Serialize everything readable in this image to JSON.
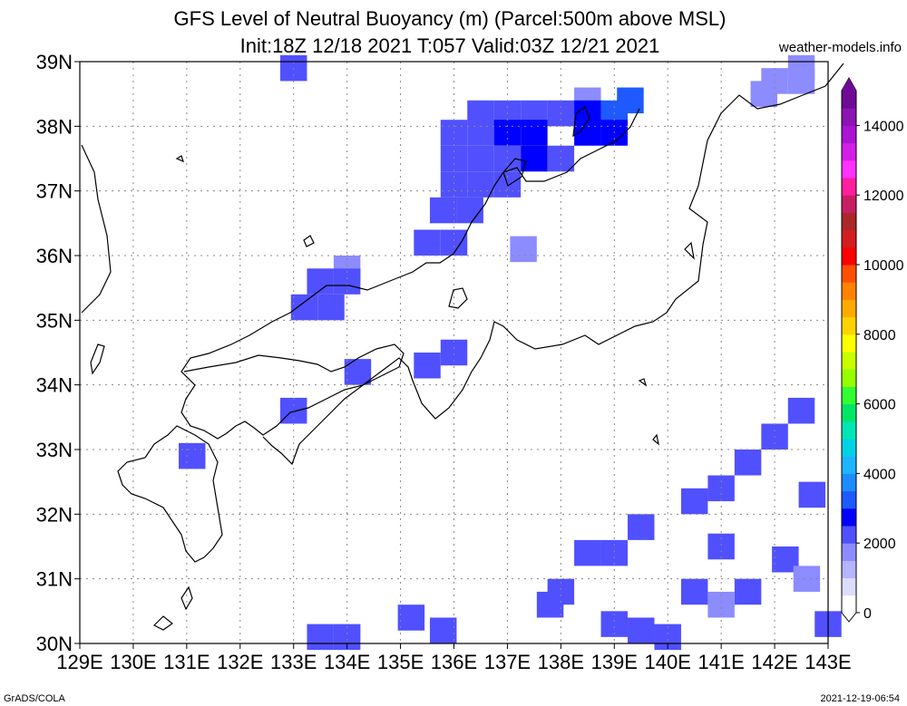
{
  "title_line1": "GFS Level of Neutral Buoyancy (m) (Parcel:500m above MSL)",
  "title_line2": "Init:18Z 12/18 2021 T:057 Valid:03Z 12/21 2021",
  "credit": "weather-models.info",
  "footer_left": "GrADS/COLA",
  "footer_right": "2021-12-19-06:54",
  "lon_labels": [
    "129E",
    "130E",
    "131E",
    "132E",
    "133E",
    "134E",
    "135E",
    "136E",
    "137E",
    "138E",
    "139E",
    "140E",
    "141E",
    "142E",
    "143E"
  ],
  "lat_labels": [
    "30N",
    "31N",
    "32N",
    "33N",
    "34N",
    "35N",
    "36N",
    "37N",
    "38N",
    "39N"
  ],
  "colorbar": {
    "labels": [
      "0",
      "2000",
      "4000",
      "6000",
      "8000",
      "10000",
      "12000",
      "14000"
    ],
    "colors": [
      "#ffffff",
      "#dcdcff",
      "#b4b4ff",
      "#8c8cff",
      "#5050ff",
      "#0000ff",
      "#1e5aff",
      "#1e8cff",
      "#1eb4ff",
      "#00d2e6",
      "#00e6b4",
      "#00e664",
      "#32ff32",
      "#96ff00",
      "#c8ff00",
      "#ffff00",
      "#ffd200",
      "#ffaa00",
      "#ff8200",
      "#ff5000",
      "#ff0000",
      "#d21e1e",
      "#aa2828",
      "#c81e64",
      "#ff1ea0",
      "#ff32ff",
      "#d21ee6",
      "#aa14d2",
      "#8c14b4",
      "#6e0a96"
    ]
  },
  "chart_data": {
    "type": "heatmap",
    "units": "m",
    "lon_range": [
      129,
      143
    ],
    "lat_range": [
      30,
      39
    ],
    "cells": [
      {
        "lon": 133.0,
        "lat": 38.9,
        "v": 2000
      },
      {
        "lon": 142.5,
        "lat": 38.9,
        "v": 1800
      },
      {
        "lon": 142.0,
        "lat": 38.7,
        "v": 1800
      },
      {
        "lon": 142.5,
        "lat": 38.7,
        "v": 1500
      },
      {
        "lon": 141.8,
        "lat": 38.5,
        "v": 1800
      },
      {
        "lon": 138.5,
        "lat": 38.4,
        "v": 1500
      },
      {
        "lon": 139.3,
        "lat": 38.4,
        "v": 3300
      },
      {
        "lon": 136.5,
        "lat": 38.2,
        "v": 2000
      },
      {
        "lon": 137.0,
        "lat": 38.2,
        "v": 2000
      },
      {
        "lon": 137.5,
        "lat": 38.2,
        "v": 2100
      },
      {
        "lon": 138.0,
        "lat": 38.2,
        "v": 2200
      },
      {
        "lon": 138.5,
        "lat": 38.2,
        "v": 2800
      },
      {
        "lon": 139.0,
        "lat": 38.2,
        "v": 3000
      },
      {
        "lon": 136.0,
        "lat": 37.9,
        "v": 2100
      },
      {
        "lon": 136.5,
        "lat": 37.9,
        "v": 2400
      },
      {
        "lon": 137.0,
        "lat": 37.9,
        "v": 2600
      },
      {
        "lon": 137.5,
        "lat": 37.9,
        "v": 2500
      },
      {
        "lon": 138.5,
        "lat": 37.9,
        "v": 2600
      },
      {
        "lon": 139.0,
        "lat": 37.9,
        "v": 2700
      },
      {
        "lon": 136.0,
        "lat": 37.5,
        "v": 2100
      },
      {
        "lon": 136.5,
        "lat": 37.5,
        "v": 2300
      },
      {
        "lon": 137.0,
        "lat": 37.5,
        "v": 2400
      },
      {
        "lon": 137.5,
        "lat": 37.5,
        "v": 2600
      },
      {
        "lon": 138.0,
        "lat": 37.5,
        "v": 2400
      },
      {
        "lon": 136.0,
        "lat": 37.1,
        "v": 2100
      },
      {
        "lon": 136.5,
        "lat": 37.1,
        "v": 2200
      },
      {
        "lon": 137.0,
        "lat": 37.1,
        "v": 2300
      },
      {
        "lon": 135.8,
        "lat": 36.7,
        "v": 2000
      },
      {
        "lon": 136.3,
        "lat": 36.7,
        "v": 2100
      },
      {
        "lon": 135.5,
        "lat": 36.2,
        "v": 2000
      },
      {
        "lon": 136.0,
        "lat": 36.2,
        "v": 2200
      },
      {
        "lon": 137.3,
        "lat": 36.1,
        "v": 1500
      },
      {
        "lon": 134.0,
        "lat": 35.8,
        "v": 1900
      },
      {
        "lon": 133.5,
        "lat": 35.6,
        "v": 2000
      },
      {
        "lon": 134.0,
        "lat": 35.6,
        "v": 2000
      },
      {
        "lon": 133.2,
        "lat": 35.2,
        "v": 2000
      },
      {
        "lon": 133.7,
        "lat": 35.2,
        "v": 2000
      },
      {
        "lon": 134.2,
        "lat": 34.2,
        "v": 2100
      },
      {
        "lon": 135.5,
        "lat": 34.3,
        "v": 2000
      },
      {
        "lon": 136.0,
        "lat": 34.5,
        "v": 2000
      },
      {
        "lon": 133.0,
        "lat": 33.6,
        "v": 2000
      },
      {
        "lon": 131.1,
        "lat": 32.9,
        "v": 2000
      },
      {
        "lon": 142.5,
        "lat": 33.6,
        "v": 2300
      },
      {
        "lon": 142.0,
        "lat": 33.2,
        "v": 2200
      },
      {
        "lon": 141.5,
        "lat": 32.8,
        "v": 2100
      },
      {
        "lon": 141.0,
        "lat": 32.4,
        "v": 2000
      },
      {
        "lon": 140.5,
        "lat": 32.2,
        "v": 2000
      },
      {
        "lon": 142.7,
        "lat": 32.3,
        "v": 2000
      },
      {
        "lon": 139.5,
        "lat": 31.8,
        "v": 2000
      },
      {
        "lon": 138.5,
        "lat": 31.4,
        "v": 2000
      },
      {
        "lon": 139.0,
        "lat": 31.4,
        "v": 2000
      },
      {
        "lon": 141.0,
        "lat": 31.5,
        "v": 2000
      },
      {
        "lon": 142.2,
        "lat": 31.3,
        "v": 2000
      },
      {
        "lon": 142.6,
        "lat": 31.0,
        "v": 1900
      },
      {
        "lon": 138.0,
        "lat": 30.8,
        "v": 2000
      },
      {
        "lon": 140.5,
        "lat": 30.8,
        "v": 2000
      },
      {
        "lon": 141.5,
        "lat": 30.8,
        "v": 2000
      },
      {
        "lon": 137.8,
        "lat": 30.6,
        "v": 2000
      },
      {
        "lon": 141.0,
        "lat": 30.6,
        "v": 1800
      },
      {
        "lon": 139.0,
        "lat": 30.3,
        "v": 2000
      },
      {
        "lon": 139.5,
        "lat": 30.2,
        "v": 2000
      },
      {
        "lon": 140.0,
        "lat": 30.1,
        "v": 2000
      },
      {
        "lon": 135.2,
        "lat": 30.4,
        "v": 2000
      },
      {
        "lon": 135.8,
        "lat": 30.2,
        "v": 2000
      },
      {
        "lon": 133.5,
        "lat": 30.1,
        "v": 2000
      },
      {
        "lon": 134.0,
        "lat": 30.1,
        "v": 2000
      },
      {
        "lon": 143.0,
        "lat": 30.3,
        "v": 2000
      }
    ]
  }
}
